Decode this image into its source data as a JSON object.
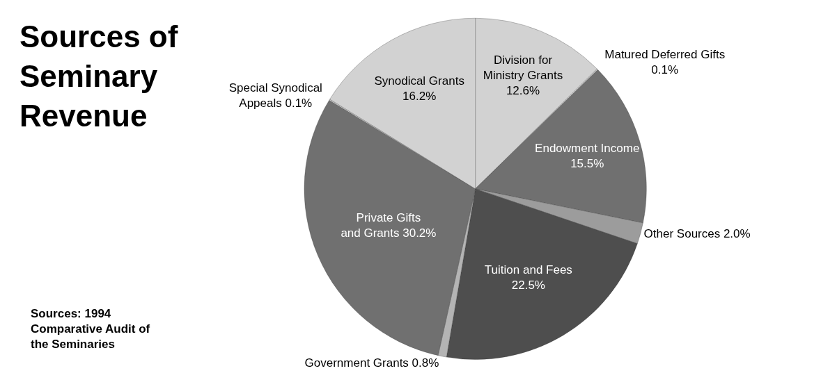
{
  "chart_data": {
    "type": "pie",
    "title": "Sources of Seminary Revenue",
    "categories": [
      "Division for Ministry Grants",
      "Matured Deferred Gifts",
      "Endowment Income",
      "Other Sources",
      "Tuition and Fees",
      "Government Grants",
      "Private Gifts and Grants",
      "Special Synodical Appeals",
      "Synodical Grants"
    ],
    "values": [
      12.6,
      0.1,
      15.5,
      2.0,
      22.5,
      0.8,
      30.2,
      0.1,
      16.2
    ],
    "value_labels": [
      "12.6%",
      "0.1%",
      "15.5%",
      "2.0%",
      "22.5%",
      "0.8%",
      "30.2%",
      "0.1%",
      "16.2%"
    ],
    "colors": [
      "#d2d2d2",
      "#d2d2d2",
      "#707070",
      "#9c9c9c",
      "#4e4e4e",
      "#b4b4b4",
      "#707070",
      "#d2d2d2",
      "#d2d2d2"
    ],
    "annotations": [
      "Sources: 1994 Comparative Audit of the Seminaries"
    ],
    "legend": false
  }
}
